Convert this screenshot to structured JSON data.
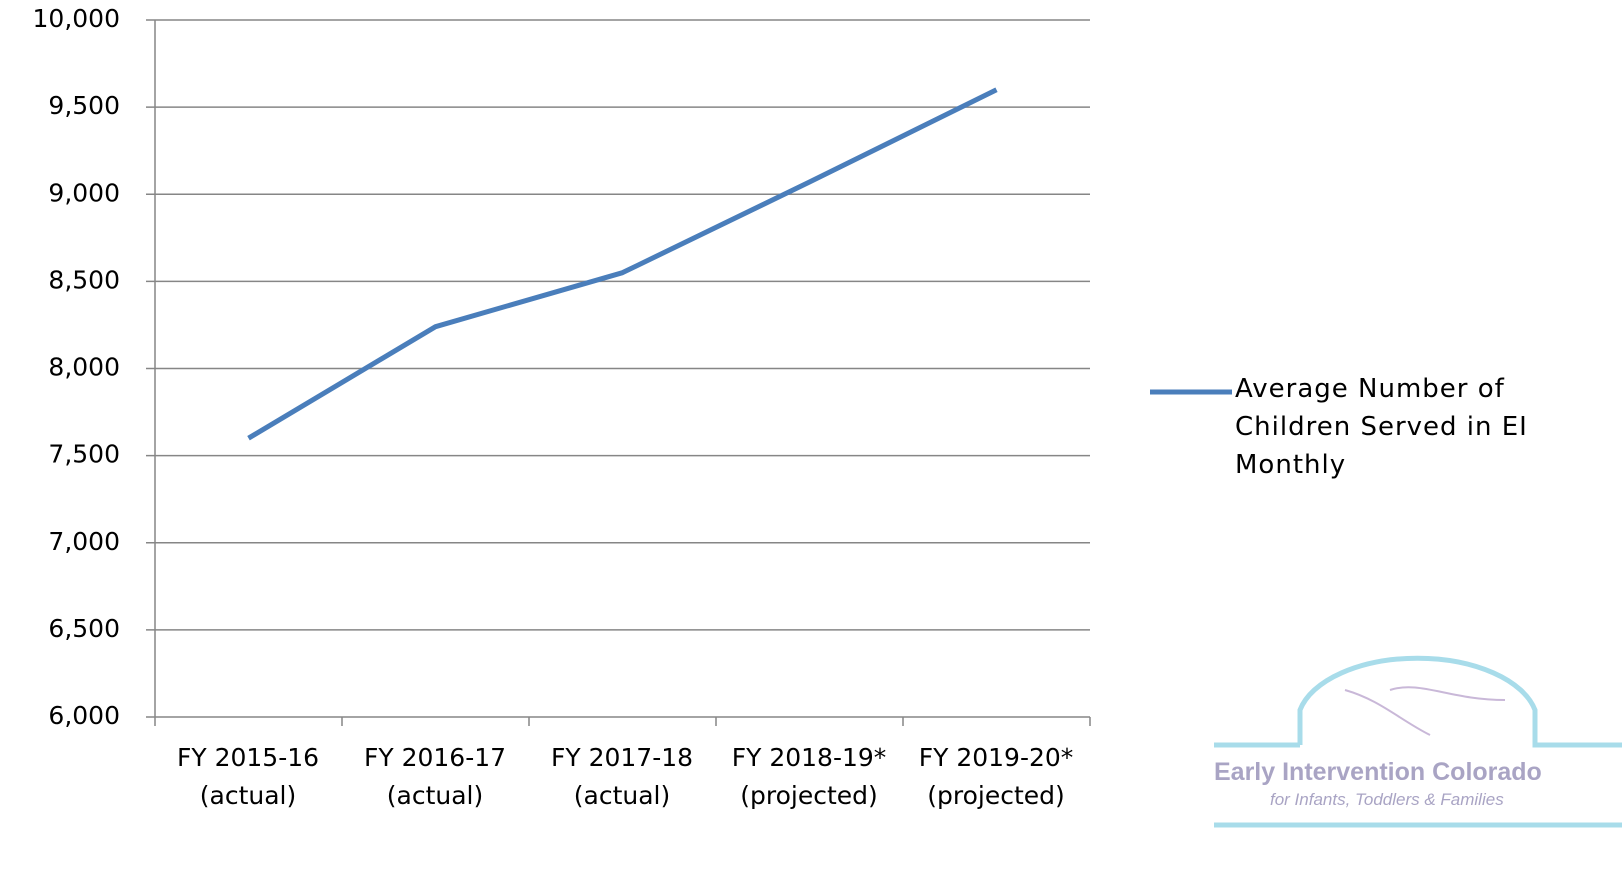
{
  "chart_data": {
    "type": "line",
    "categories": [
      "FY 2015-16 (actual)",
      "FY 2016-17 (actual)",
      "FY 2017-18 (actual)",
      "FY 2018-19* (projected)",
      "FY 2019-20* (projected)"
    ],
    "series": [
      {
        "name": "Average Number of Children Served in EI Monthly",
        "color": "#4a7ebb",
        "values": [
          7600,
          8240,
          8550,
          9070,
          9600
        ]
      }
    ],
    "ylim": [
      6000,
      10000
    ],
    "yticks": [
      {
        "value": 6000,
        "label": "6,000"
      },
      {
        "value": 6500,
        "label": "6,500"
      },
      {
        "value": 7000,
        "label": "7,000"
      },
      {
        "value": 7500,
        "label": "7,500"
      },
      {
        "value": 8000,
        "label": "8,000"
      },
      {
        "value": 8500,
        "label": "8,500"
      },
      {
        "value": 9000,
        "label": "9,000"
      },
      {
        "value": 9500,
        "label": "9,500"
      },
      {
        "value": 10000,
        "label": "10,000"
      }
    ],
    "grid": true,
    "legend": "right"
  },
  "logo": {
    "title": "Early Intervention Colorado",
    "subtitle": "for Infants, Toddlers & Families"
  }
}
